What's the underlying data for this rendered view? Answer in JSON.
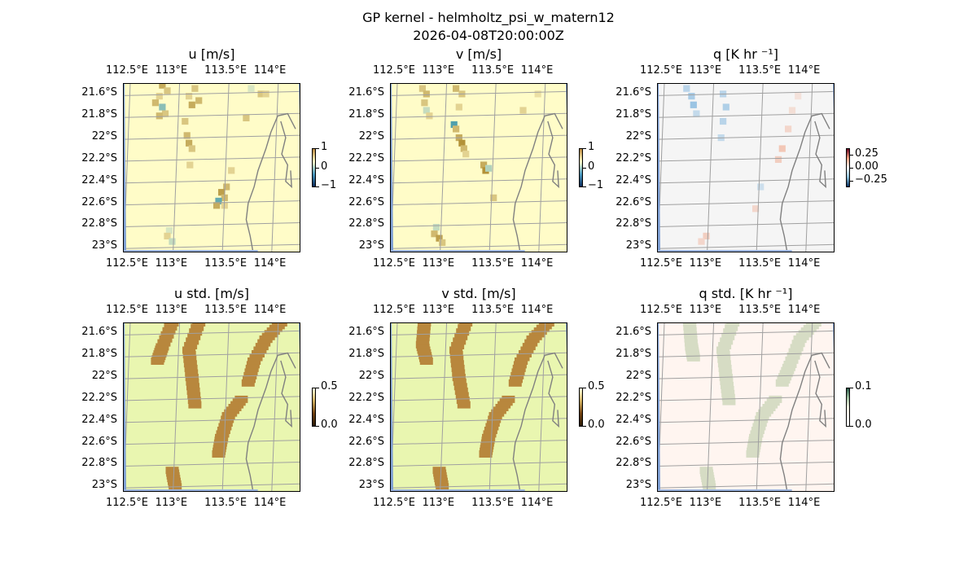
{
  "figure": {
    "title_line1": "GP kernel - helmholtz_psi_w_matern12",
    "title_line2": "2026-04-08T20:00:00Z"
  },
  "chart_data": [
    {
      "type": "heatmap",
      "title": "u [m/s]",
      "x_ticks": [
        "112.5°E",
        "113°E",
        "113.5°E",
        "114°E"
      ],
      "y_ticks": [
        "21.6°S",
        "21.8°S",
        "22°S",
        "22.2°S",
        "22.4°S",
        "22.6°S",
        "22.8°S",
        "23°S"
      ],
      "colorbar": {
        "ticks": [
          "1",
          "0",
          "−1"
        ],
        "range": [
          -1,
          1
        ]
      },
      "background_color": "#fffcc8",
      "cells": [
        [
          112.85,
          -21.52,
          0.6
        ],
        [
          112.9,
          -21.57,
          0.4
        ],
        [
          112.82,
          -21.62,
          0.3
        ],
        [
          112.78,
          -21.68,
          0.5
        ],
        [
          112.85,
          -21.72,
          -0.6
        ],
        [
          112.88,
          -21.78,
          0.4
        ],
        [
          112.82,
          -21.8,
          0.5
        ],
        [
          113.18,
          -21.55,
          0.4
        ],
        [
          113.12,
          -21.62,
          0.3
        ],
        [
          113.15,
          -21.7,
          0.6
        ],
        [
          113.22,
          -21.66,
          0.5
        ],
        [
          113.08,
          -21.85,
          0.4
        ],
        [
          113.1,
          -21.98,
          0.5
        ],
        [
          113.12,
          -22.05,
          0.6
        ],
        [
          113.15,
          -22.1,
          0.4
        ],
        [
          113.13,
          -22.25,
          0.3
        ],
        [
          113.75,
          -21.55,
          -0.2
        ],
        [
          113.85,
          -21.6,
          0.4
        ],
        [
          113.9,
          -21.6,
          0.3
        ],
        [
          113.7,
          -21.82,
          0.4
        ],
        [
          113.55,
          -22.3,
          0.3
        ],
        [
          113.5,
          -22.45,
          0.5
        ],
        [
          113.45,
          -22.5,
          0.7
        ],
        [
          113.48,
          -22.55,
          0.5
        ],
        [
          113.42,
          -22.58,
          -0.8
        ],
        [
          113.4,
          -22.62,
          0.6
        ],
        [
          113.48,
          -22.62,
          0.3
        ],
        [
          112.92,
          -22.85,
          -0.2
        ],
        [
          112.9,
          -22.9,
          0.3
        ],
        [
          112.95,
          -22.95,
          -0.3
        ]
      ]
    },
    {
      "type": "heatmap",
      "title": "v [m/s]",
      "x_ticks": [
        "112.5°E",
        "113°E",
        "113.5°E",
        "114°E"
      ],
      "y_ticks": [
        "21.6°S",
        "21.8°S",
        "22°S",
        "22.2°S",
        "22.4°S",
        "22.6°S",
        "22.8°S",
        "23°S"
      ],
      "colorbar": {
        "ticks": [
          "1",
          "0",
          "−1"
        ],
        "range": [
          -1,
          1
        ]
      },
      "background_color": "#fffcc8",
      "cells": [
        [
          112.78,
          -21.55,
          0.4
        ],
        [
          112.82,
          -21.6,
          0.5
        ],
        [
          112.8,
          -21.68,
          0.4
        ],
        [
          112.82,
          -21.75,
          -0.3
        ],
        [
          112.85,
          -21.8,
          0.3
        ],
        [
          113.12,
          -21.55,
          0.5
        ],
        [
          113.18,
          -21.6,
          0.4
        ],
        [
          113.15,
          -21.72,
          0.3
        ],
        [
          113.1,
          -21.88,
          -0.9
        ],
        [
          113.12,
          -21.92,
          0.5
        ],
        [
          113.15,
          -22.0,
          0.6
        ],
        [
          113.18,
          -22.05,
          0.8
        ],
        [
          113.2,
          -22.1,
          0.5
        ],
        [
          113.22,
          -22.15,
          0.3
        ],
        [
          113.4,
          -22.25,
          0.6
        ],
        [
          113.42,
          -22.3,
          0.8
        ],
        [
          113.45,
          -22.28,
          -0.4
        ],
        [
          113.5,
          -22.55,
          0.4
        ],
        [
          113.95,
          -21.6,
          0.2
        ],
        [
          113.8,
          -21.75,
          0.3
        ],
        [
          112.92,
          -22.82,
          -0.3
        ],
        [
          112.9,
          -22.88,
          0.5
        ],
        [
          112.95,
          -22.92,
          0.7
        ],
        [
          112.98,
          -22.96,
          0.4
        ]
      ]
    },
    {
      "type": "heatmap",
      "title": "q [K hr ⁻¹]",
      "x_ticks": [
        "112.5°E",
        "113°E",
        "113.5°E",
        "114°E"
      ],
      "y_ticks": [
        "21.6°S",
        "21.8°S",
        "22°S",
        "22.2°S",
        "22.4°S",
        "22.6°S",
        "22.8°S",
        "23°S"
      ],
      "colorbar": {
        "ticks": [
          "0.25",
          "0.00",
          "−0.25"
        ],
        "range": [
          -0.35,
          0.35
        ]
      },
      "background_color": "#f5f5f5",
      "cells": [
        [
          112.75,
          -21.55,
          -0.12
        ],
        [
          112.8,
          -21.62,
          -0.15
        ],
        [
          112.82,
          -21.7,
          -0.18
        ],
        [
          112.85,
          -21.78,
          -0.1
        ],
        [
          113.12,
          -21.6,
          -0.12
        ],
        [
          113.15,
          -21.72,
          -0.14
        ],
        [
          113.12,
          -21.85,
          -0.12
        ],
        [
          113.1,
          -22.0,
          -0.1
        ],
        [
          113.5,
          -22.45,
          -0.08
        ],
        [
          113.88,
          -21.62,
          0.05
        ],
        [
          113.82,
          -21.75,
          0.06
        ],
        [
          113.78,
          -21.92,
          0.08
        ],
        [
          113.72,
          -22.1,
          0.12
        ],
        [
          113.68,
          -22.2,
          0.1
        ],
        [
          113.45,
          -22.65,
          0.08
        ],
        [
          112.95,
          -22.9,
          0.1
        ],
        [
          112.9,
          -22.95,
          0.08
        ]
      ]
    },
    {
      "type": "heatmap",
      "title": "u std. [m/s]",
      "x_ticks": [
        "112.5°E",
        "113°E",
        "113.5°E",
        "114°E"
      ],
      "y_ticks": [
        "21.6°S",
        "21.8°S",
        "22°S",
        "22.2°S",
        "22.4°S",
        "22.6°S",
        "22.8°S",
        "23°S"
      ],
      "colorbar": {
        "ticks": [
          "0.5",
          "0.0"
        ],
        "range": [
          0,
          0.6
        ]
      },
      "background_color": "#e9f6b0",
      "bands": [
        [
          [
            112.95,
            -21.5
          ],
          [
            112.85,
            -21.72
          ],
          [
            112.8,
            -21.85
          ]
        ],
        [
          [
            113.22,
            -21.5
          ],
          [
            113.12,
            -21.75
          ],
          [
            113.15,
            -22.0
          ],
          [
            113.18,
            -22.25
          ]
        ],
        [
          [
            114.05,
            -21.5
          ],
          [
            113.9,
            -21.65
          ],
          [
            113.78,
            -21.85
          ],
          [
            113.72,
            -22.05
          ]
        ],
        [
          [
            113.65,
            -22.2
          ],
          [
            113.52,
            -22.35
          ],
          [
            113.45,
            -22.55
          ],
          [
            113.42,
            -22.7
          ]
        ],
        [
          [
            112.95,
            -22.85
          ],
          [
            112.98,
            -23.0
          ]
        ]
      ]
    },
    {
      "type": "heatmap",
      "title": "v std. [m/s]",
      "x_ticks": [
        "112.5°E",
        "113°E",
        "113.5°E",
        "114°E"
      ],
      "y_ticks": [
        "21.6°S",
        "21.8°S",
        "22°S",
        "22.2°S",
        "22.4°S",
        "22.6°S",
        "22.8°S",
        "23°S"
      ],
      "colorbar": {
        "ticks": [
          "0.5",
          "0.0"
        ],
        "range": [
          0,
          0.6
        ]
      },
      "background_color": "#e9f6b0",
      "bands": [
        [
          [
            112.8,
            -21.5
          ],
          [
            112.78,
            -21.7
          ],
          [
            112.82,
            -21.85
          ]
        ],
        [
          [
            113.22,
            -21.5
          ],
          [
            113.12,
            -21.75
          ],
          [
            113.15,
            -22.0
          ],
          [
            113.2,
            -22.25
          ]
        ],
        [
          [
            114.05,
            -21.5
          ],
          [
            113.9,
            -21.65
          ],
          [
            113.78,
            -21.85
          ],
          [
            113.72,
            -22.05
          ]
        ],
        [
          [
            113.65,
            -22.2
          ],
          [
            113.52,
            -22.35
          ],
          [
            113.45,
            -22.55
          ],
          [
            113.42,
            -22.7
          ]
        ],
        [
          [
            112.95,
            -22.85
          ],
          [
            112.98,
            -23.0
          ]
        ]
      ]
    },
    {
      "type": "heatmap",
      "title": "q std. [K hr ⁻¹]",
      "x_ticks": [
        "112.5°E",
        "113°E",
        "113.5°E",
        "114°E"
      ],
      "y_ticks": [
        "21.6°S",
        "21.8°S",
        "22°S",
        "22.2°S",
        "22.4°S",
        "22.6°S",
        "22.8°S",
        "23°S"
      ],
      "colorbar": {
        "ticks": [
          "0.1",
          "0.0"
        ],
        "range": [
          0,
          0.12
        ]
      },
      "background_color": "#fff5f0",
      "bands": [
        [
          [
            112.78,
            -21.5
          ],
          [
            112.8,
            -21.72
          ],
          [
            112.82,
            -21.82
          ]
        ],
        [
          [
            113.22,
            -21.5
          ],
          [
            113.12,
            -21.75
          ],
          [
            113.15,
            -22.0
          ],
          [
            113.18,
            -22.22
          ]
        ],
        [
          [
            114.05,
            -21.5
          ],
          [
            113.9,
            -21.65
          ],
          [
            113.8,
            -21.88
          ],
          [
            113.72,
            -22.05
          ]
        ],
        [
          [
            113.65,
            -22.2
          ],
          [
            113.52,
            -22.35
          ],
          [
            113.45,
            -22.55
          ],
          [
            113.42,
            -22.7
          ]
        ],
        [
          [
            112.95,
            -22.85
          ],
          [
            112.98,
            -23.0
          ]
        ]
      ]
    }
  ]
}
